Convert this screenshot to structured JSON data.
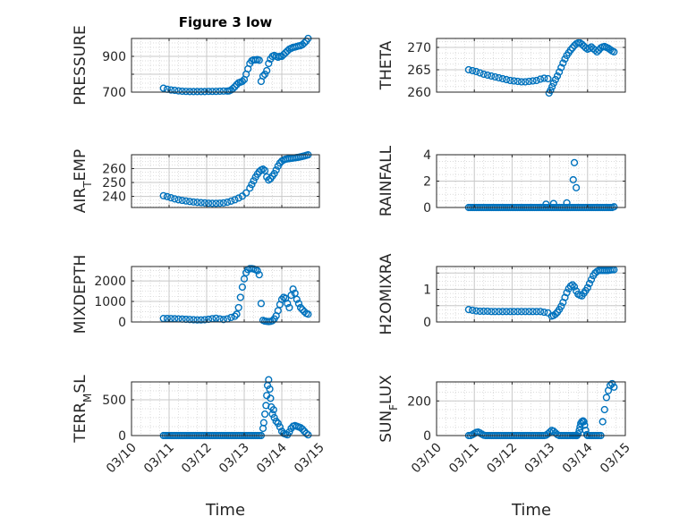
{
  "figure": {
    "title": "Figure 3 low",
    "marker_color": "#0072bd",
    "xticks": [
      "03/10",
      "03/11",
      "03/12",
      "03/13",
      "03/14",
      "03/15"
    ],
    "xlabel": "Time"
  },
  "chart_data": [
    {
      "type": "scatter",
      "ylabel": "PRESSURE",
      "ylim": [
        700,
        1000
      ],
      "yticks": [
        700,
        800,
        900
      ],
      "yticklabels": [
        "700",
        "",
        "900"
      ],
      "x": [
        0.85,
        0.95,
        1.05,
        1.15,
        1.25,
        1.35,
        1.45,
        1.55,
        1.65,
        1.75,
        1.85,
        1.95,
        2.05,
        2.15,
        2.25,
        2.35,
        2.45,
        2.55,
        2.6,
        2.65,
        2.7,
        2.75,
        2.8,
        2.85,
        2.9,
        2.95,
        3.0,
        3.05,
        3.1,
        3.15,
        3.2,
        3.25,
        3.3,
        3.35,
        3.4,
        3.45,
        3.5,
        3.55,
        3.6,
        3.65,
        3.7,
        3.75,
        3.8,
        3.85,
        3.9,
        3.95,
        4.0,
        4.05,
        4.1,
        4.15,
        4.2,
        4.25,
        4.3,
        4.35,
        4.4,
        4.45,
        4.5,
        4.55,
        4.6,
        4.65,
        4.7
      ],
      "y": [
        722,
        716,
        712,
        710,
        707,
        705,
        704,
        703,
        703,
        703,
        703,
        703,
        704,
        704,
        704,
        705,
        706,
        706,
        707,
        712,
        720,
        730,
        742,
        752,
        756,
        760,
        770,
        800,
        830,
        860,
        875,
        880,
        880,
        882,
        878,
        760,
        790,
        800,
        820,
        860,
        885,
        900,
        905,
        900,
        895,
        900,
        900,
        910,
        920,
        930,
        940,
        945,
        950,
        952,
        955,
        958,
        960,
        965,
        975,
        985,
        1000
      ]
    },
    {
      "type": "scatter",
      "ylabel": "THETA",
      "ylim": [
        260,
        272
      ],
      "yticks": [
        260,
        265,
        270
      ],
      "yticklabels": [
        "260",
        "265",
        "270"
      ],
      "x": [
        0.85,
        0.95,
        1.05,
        1.15,
        1.25,
        1.35,
        1.45,
        1.55,
        1.65,
        1.75,
        1.85,
        1.95,
        2.05,
        2.15,
        2.25,
        2.35,
        2.45,
        2.55,
        2.65,
        2.75,
        2.85,
        2.95,
        2.98,
        3.02,
        3.06,
        3.1,
        3.15,
        3.2,
        3.25,
        3.3,
        3.35,
        3.4,
        3.45,
        3.5,
        3.55,
        3.6,
        3.65,
        3.7,
        3.75,
        3.8,
        3.85,
        3.9,
        3.95,
        4.0,
        4.05,
        4.1,
        4.15,
        4.2,
        4.25,
        4.3,
        4.35,
        4.4,
        4.45,
        4.5,
        4.55,
        4.6,
        4.65,
        4.7
      ],
      "y": [
        265.0,
        264.8,
        264.6,
        264.3,
        264.0,
        263.8,
        263.6,
        263.4,
        263.2,
        263.0,
        262.8,
        262.6,
        262.5,
        262.4,
        262.3,
        262.3,
        262.4,
        262.5,
        262.6,
        262.9,
        263.1,
        263.0,
        259.8,
        260.4,
        261.2,
        262.0,
        262.8,
        263.6,
        264.5,
        265.5,
        266.5,
        267.4,
        268.2,
        268.8,
        269.4,
        269.9,
        270.4,
        270.8,
        271.0,
        271.0,
        270.7,
        270.3,
        269.9,
        269.6,
        269.8,
        270.1,
        269.7,
        269.4,
        269.0,
        269.4,
        269.9,
        270.1,
        270.2,
        270.0,
        269.8,
        269.5,
        269.2,
        269.0
      ]
    },
    {
      "type": "scatter",
      "ylabel": "AIR_TEMP",
      "ylim": [
        232,
        270
      ],
      "yticks": [
        240,
        250,
        260
      ],
      "yticklabels": [
        "240",
        "250",
        "260"
      ],
      "x": [
        0.85,
        0.95,
        1.05,
        1.15,
        1.25,
        1.35,
        1.45,
        1.55,
        1.65,
        1.75,
        1.85,
        1.95,
        2.05,
        2.15,
        2.25,
        2.35,
        2.45,
        2.55,
        2.65,
        2.75,
        2.85,
        2.95,
        3.05,
        3.15,
        3.2,
        3.25,
        3.3,
        3.35,
        3.4,
        3.45,
        3.5,
        3.55,
        3.6,
        3.65,
        3.7,
        3.75,
        3.8,
        3.85,
        3.9,
        3.95,
        4.0,
        4.05,
        4.1,
        4.15,
        4.2,
        4.25,
        4.3,
        4.35,
        4.4,
        4.45,
        4.5,
        4.55,
        4.6,
        4.65,
        4.7
      ],
      "y": [
        240.5,
        239.8,
        239.0,
        238.2,
        237.6,
        237.1,
        236.7,
        236.3,
        236.0,
        235.7,
        235.5,
        235.3,
        235.1,
        235.0,
        235.0,
        235.1,
        235.3,
        235.8,
        236.6,
        237.6,
        238.8,
        240.2,
        242.5,
        246.0,
        248.6,
        251.2,
        253.8,
        256.0,
        257.8,
        259.0,
        259.6,
        258.6,
        254.0,
        251.8,
        252.8,
        254.6,
        256.4,
        259.0,
        261.8,
        264.0,
        265.4,
        266.2,
        266.8,
        267.0,
        267.2,
        267.4,
        267.6,
        267.8,
        268.0,
        268.2,
        268.5,
        268.8,
        269.1,
        269.5,
        269.9
      ]
    },
    {
      "type": "scatter",
      "ylabel": "RAINFALL",
      "ylim": [
        0,
        4
      ],
      "yticks": [
        0,
        2,
        4
      ],
      "yticklabels": [
        "0",
        "2",
        "4"
      ],
      "x": [
        0.85,
        0.9,
        0.95,
        1.0,
        1.05,
        1.1,
        1.15,
        1.2,
        1.25,
        1.3,
        1.35,
        1.4,
        1.45,
        1.5,
        1.55,
        1.6,
        1.65,
        1.7,
        1.75,
        1.8,
        1.85,
        1.9,
        1.95,
        2.0,
        2.05,
        2.1,
        2.15,
        2.2,
        2.25,
        2.3,
        2.35,
        2.4,
        2.45,
        2.5,
        2.55,
        2.6,
        2.65,
        2.7,
        2.75,
        2.8,
        2.85,
        2.9,
        2.95,
        3.0,
        3.05,
        3.1,
        3.15,
        3.2,
        3.25,
        3.3,
        3.35,
        3.4,
        3.45,
        3.5,
        3.55,
        3.6,
        3.65,
        3.7,
        3.75,
        3.8,
        3.85,
        3.9,
        3.95,
        4.0,
        4.05,
        4.1,
        4.15,
        4.2,
        4.25,
        4.3,
        4.35,
        4.4,
        4.45,
        4.5,
        4.55,
        4.6,
        4.65,
        4.7,
        2.9,
        3.1,
        3.45,
        3.62,
        3.65,
        3.7
      ],
      "y": [
        0,
        0,
        0,
        0,
        0,
        0,
        0,
        0,
        0,
        0,
        0,
        0,
        0,
        0,
        0,
        0,
        0,
        0,
        0,
        0,
        0,
        0,
        0,
        0,
        0,
        0,
        0,
        0,
        0,
        0,
        0,
        0,
        0,
        0,
        0,
        0,
        0,
        0,
        0,
        0,
        0,
        0,
        0,
        0,
        0,
        0,
        0,
        0,
        0,
        0,
        0,
        0,
        0,
        0,
        0,
        0,
        0,
        0,
        0,
        0,
        0,
        0,
        0,
        0,
        0,
        0,
        0,
        0,
        0,
        0,
        0,
        0,
        0,
        0,
        0,
        0,
        0,
        0.05,
        0.25,
        0.3,
        0.35,
        2.1,
        3.4,
        1.5
      ]
    },
    {
      "type": "scatter",
      "ylabel": "MIXDEPTH",
      "ylim": [
        0,
        2700
      ],
      "yticks": [
        0,
        1000,
        2000
      ],
      "yticklabels": [
        "0",
        "1000",
        "2000"
      ],
      "x": [
        0.85,
        0.95,
        1.05,
        1.15,
        1.25,
        1.35,
        1.45,
        1.55,
        1.65,
        1.75,
        1.85,
        1.95,
        2.05,
        2.15,
        2.25,
        2.35,
        2.45,
        2.55,
        2.65,
        2.75,
        2.8,
        2.85,
        2.9,
        2.95,
        3.0,
        3.05,
        3.1,
        3.15,
        3.2,
        3.25,
        3.3,
        3.35,
        3.4,
        3.45,
        3.5,
        3.55,
        3.6,
        3.65,
        3.7,
        3.75,
        3.8,
        3.85,
        3.9,
        3.95,
        4.0,
        4.05,
        4.1,
        4.15,
        4.2,
        4.25,
        4.3,
        4.35,
        4.4,
        4.45,
        4.5,
        4.55,
        4.6,
        4.65,
        4.7
      ],
      "y": [
        170,
        170,
        165,
        160,
        150,
        140,
        130,
        120,
        110,
        100,
        100,
        110,
        130,
        160,
        180,
        150,
        120,
        150,
        220,
        280,
        380,
        700,
        1200,
        1700,
        2100,
        2400,
        2550,
        2600,
        2600,
        2580,
        2550,
        2500,
        2300,
        900,
        80,
        40,
        30,
        20,
        30,
        60,
        150,
        300,
        550,
        850,
        1100,
        1200,
        1150,
        900,
        700,
        1300,
        1600,
        1400,
        1100,
        900,
        700,
        600,
        500,
        420,
        380
      ]
    },
    {
      "type": "scatter",
      "ylabel": "H2OMIXRA",
      "ylim": [
        0,
        1.7
      ],
      "yticks": [
        0,
        0.5,
        1,
        1.5
      ],
      "yticklabels": [
        "0",
        "",
        "1",
        ""
      ],
      "x": [
        0.85,
        0.95,
        1.05,
        1.15,
        1.25,
        1.35,
        1.45,
        1.55,
        1.65,
        1.75,
        1.85,
        1.95,
        2.05,
        2.15,
        2.25,
        2.35,
        2.45,
        2.55,
        2.65,
        2.75,
        2.85,
        2.95,
        3.05,
        3.1,
        3.15,
        3.2,
        3.25,
        3.3,
        3.35,
        3.4,
        3.45,
        3.5,
        3.55,
        3.6,
        3.65,
        3.7,
        3.75,
        3.8,
        3.85,
        3.9,
        3.95,
        4.0,
        4.05,
        4.1,
        4.15,
        4.2,
        4.25,
        4.3,
        4.35,
        4.4,
        4.45,
        4.5,
        4.55,
        4.6,
        4.65,
        4.7
      ],
      "y": [
        0.38,
        0.36,
        0.34,
        0.33,
        0.33,
        0.33,
        0.32,
        0.32,
        0.32,
        0.32,
        0.32,
        0.32,
        0.32,
        0.32,
        0.32,
        0.32,
        0.32,
        0.32,
        0.32,
        0.32,
        0.3,
        0.28,
        0.18,
        0.2,
        0.24,
        0.3,
        0.38,
        0.48,
        0.6,
        0.75,
        0.9,
        1.02,
        1.1,
        1.14,
        1.08,
        0.95,
        0.85,
        0.82,
        0.8,
        0.88,
        0.96,
        1.05,
        1.18,
        1.3,
        1.42,
        1.5,
        1.55,
        1.58,
        1.58,
        1.58,
        1.58,
        1.58,
        1.58,
        1.59,
        1.6,
        1.6
      ]
    },
    {
      "type": "scatter",
      "ylabel": "TERR_MSL",
      "ylim": [
        0,
        750
      ],
      "yticks": [
        0,
        500
      ],
      "yticklabels": [
        "0",
        "500"
      ],
      "x": [
        0.85,
        0.9,
        0.95,
        1.0,
        1.05,
        1.1,
        1.15,
        1.2,
        1.25,
        1.3,
        1.35,
        1.4,
        1.45,
        1.5,
        1.55,
        1.6,
        1.65,
        1.7,
        1.75,
        1.8,
        1.85,
        1.9,
        1.95,
        2.0,
        2.05,
        2.1,
        2.15,
        2.2,
        2.25,
        2.3,
        2.35,
        2.4,
        2.45,
        2.5,
        2.55,
        2.6,
        2.65,
        2.7,
        2.75,
        2.8,
        2.85,
        2.9,
        2.95,
        3.0,
        3.05,
        3.1,
        3.15,
        3.2,
        3.25,
        3.3,
        3.35,
        3.4,
        3.45,
        3.5,
        3.52,
        3.55,
        3.58,
        3.6,
        3.62,
        3.65,
        3.68,
        3.7,
        3.72,
        3.75,
        3.78,
        3.8,
        3.85,
        3.9,
        3.95,
        4.0,
        4.05,
        4.1,
        4.15,
        4.2,
        4.25,
        4.3,
        4.35,
        4.4,
        4.45,
        4.5,
        4.55,
        4.6,
        4.65,
        4.7
      ],
      "y": [
        0,
        0,
        0,
        0,
        0,
        0,
        0,
        0,
        0,
        0,
        0,
        0,
        0,
        0,
        0,
        0,
        0,
        0,
        0,
        0,
        0,
        0,
        0,
        0,
        0,
        0,
        0,
        0,
        0,
        0,
        0,
        0,
        0,
        0,
        0,
        0,
        0,
        0,
        0,
        0,
        0,
        0,
        0,
        0,
        0,
        0,
        0,
        0,
        0,
        0,
        0,
        0,
        0,
        100,
        180,
        300,
        420,
        560,
        700,
        780,
        650,
        520,
        400,
        300,
        360,
        250,
        200,
        170,
        120,
        60,
        30,
        20,
        10,
        50,
        100,
        130,
        140,
        130,
        120,
        110,
        90,
        60,
        30,
        10
      ]
    },
    {
      "type": "scatter",
      "ylabel": "SUN_FLUX",
      "ylim": [
        0,
        310
      ],
      "yticks": [
        0,
        200
      ],
      "yticklabels": [
        "0",
        "200"
      ],
      "x": [
        0.85,
        0.9,
        0.95,
        1.0,
        1.05,
        1.1,
        1.15,
        1.2,
        1.25,
        1.3,
        1.35,
        1.4,
        1.45,
        1.5,
        1.55,
        1.6,
        1.65,
        1.7,
        1.75,
        1.8,
        1.85,
        1.9,
        1.95,
        2.0,
        2.05,
        2.1,
        2.15,
        2.2,
        2.25,
        2.3,
        2.35,
        2.4,
        2.45,
        2.5,
        2.55,
        2.6,
        2.65,
        2.7,
        2.75,
        2.8,
        2.85,
        2.9,
        2.95,
        3.0,
        3.05,
        3.1,
        3.15,
        3.2,
        3.25,
        3.3,
        3.35,
        3.4,
        3.45,
        3.5,
        3.55,
        3.6,
        3.62,
        3.65,
        3.68,
        3.7,
        3.72,
        3.75,
        3.78,
        3.8,
        3.82,
        3.85,
        3.88,
        3.9,
        3.92,
        3.95,
        3.98,
        4.0,
        4.05,
        4.1,
        4.15,
        4.2,
        4.25,
        4.3,
        4.35,
        4.4,
        4.45,
        4.5,
        4.55,
        4.6,
        4.65,
        4.7
      ],
      "y": [
        0,
        0,
        5,
        12,
        18,
        20,
        15,
        8,
        2,
        0,
        0,
        0,
        0,
        0,
        0,
        0,
        0,
        0,
        0,
        0,
        0,
        0,
        0,
        0,
        0,
        0,
        0,
        0,
        0,
        0,
        0,
        0,
        0,
        0,
        0,
        0,
        0,
        0,
        0,
        0,
        0,
        2,
        10,
        20,
        30,
        25,
        15,
        5,
        0,
        0,
        0,
        0,
        0,
        0,
        0,
        0,
        0,
        0,
        0,
        0,
        0,
        10,
        30,
        50,
        70,
        80,
        85,
        80,
        60,
        30,
        5,
        0,
        0,
        0,
        0,
        0,
        0,
        0,
        0,
        80,
        150,
        220,
        260,
        290,
        300,
        280
      ]
    }
  ]
}
